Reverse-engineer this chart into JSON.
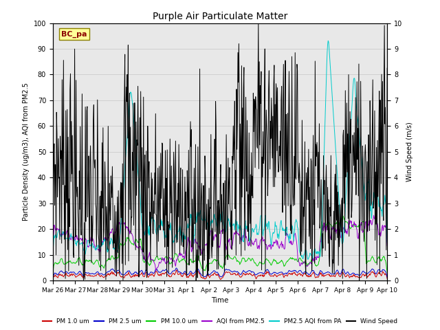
{
  "title": "Purple Air Particulate Matter",
  "xlabel": "Time",
  "ylabel_left": "Particle Density (ug/m3), AQI from PM2.5",
  "ylabel_right": "Wind Speed (m/s)",
  "ylim_left": [
    0,
    100
  ],
  "ylim_right": [
    0.0,
    10.0
  ],
  "annotation_text": "BC_pa",
  "annotation_box_color": "#ffff99",
  "annotation_box_edge": "#8B8000",
  "colors": {
    "PM1": "#cc0000",
    "PM25": "#0000cc",
    "PM10": "#00cc00",
    "AQI": "#9900cc",
    "AQI_PA": "#00cccc",
    "Wind": "#000000"
  },
  "legend_labels": [
    "PM 1.0 um",
    "PM 2.5 um",
    "PM 10.0 um",
    "AQI from PM2.5",
    "PM2.5 AQI from PA",
    "Wind Speed"
  ],
  "x_tick_labels": [
    "Mar 26",
    "Mar 27",
    "Mar 28",
    "Mar 29",
    "Mar 30",
    "Mar 31",
    "Apr 1",
    "Apr 2",
    "Apr 3",
    "Apr 4",
    "Apr 5",
    "Apr 6",
    "Apr 7",
    "Apr 8",
    "Apr 9",
    "Apr 10"
  ],
  "grid_color": "#cccccc",
  "plot_bg_color": "#e8e8e8",
  "yticks_left": [
    0,
    10,
    20,
    30,
    40,
    50,
    60,
    70,
    80,
    90,
    100
  ],
  "yticks_right": [
    0.0,
    1.0,
    2.0,
    3.0,
    4.0,
    5.0,
    6.0,
    7.0,
    8.0,
    9.0,
    10.0
  ]
}
